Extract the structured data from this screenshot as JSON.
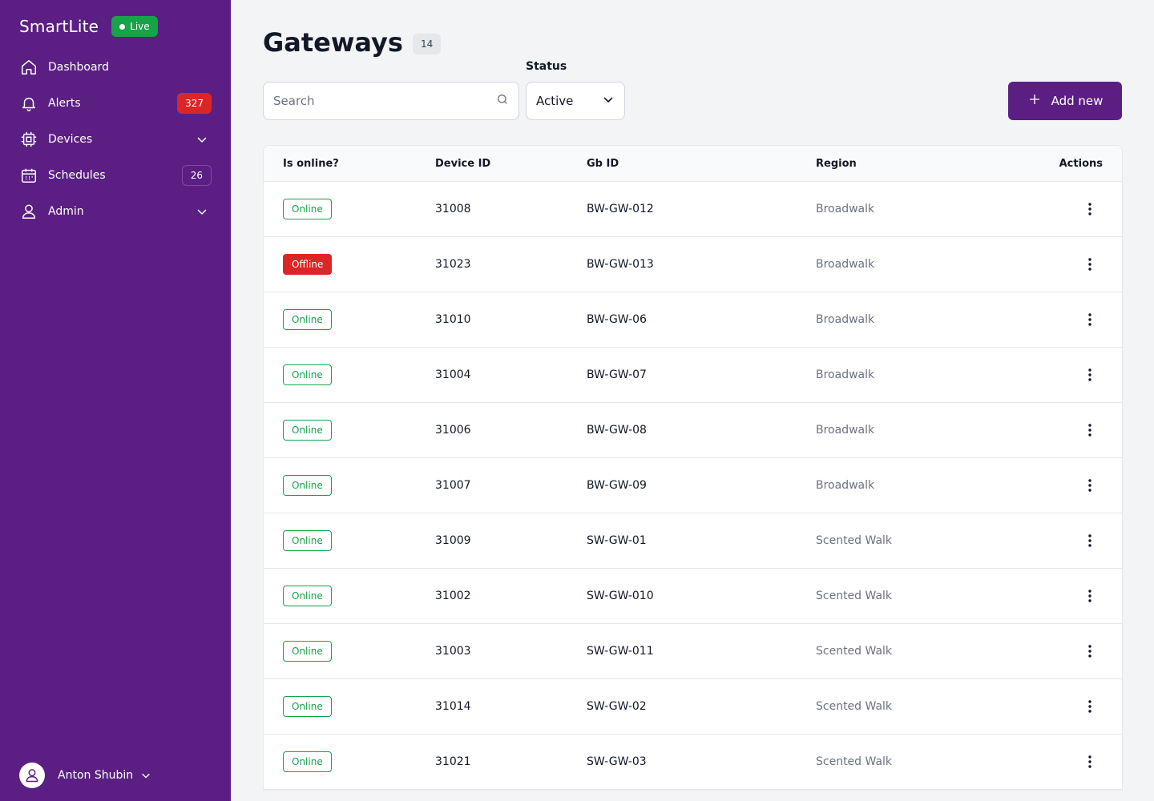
{
  "app": {
    "name": "SmartLite",
    "live_label": "Live"
  },
  "sidebar": {
    "items": [
      {
        "label": "Dashboard",
        "icon": "home-icon"
      },
      {
        "label": "Alerts",
        "icon": "bell-icon",
        "count": "327"
      },
      {
        "label": "Devices",
        "icon": "chip-icon",
        "expandable": true
      },
      {
        "label": "Schedules",
        "icon": "calendar-icon",
        "count": "26"
      },
      {
        "label": "Admin",
        "icon": "user-icon",
        "expandable": true
      }
    ],
    "user": {
      "name": "Anton Shubin"
    }
  },
  "page": {
    "title": "Gateways",
    "count": "14"
  },
  "filters": {
    "search_placeholder": "Search",
    "status_label": "Status",
    "status_value": "Active"
  },
  "actions": {
    "add_label": "Add new"
  },
  "table": {
    "headers": [
      "Is online?",
      "Device ID",
      "Gb ID",
      "Region",
      "Actions"
    ],
    "rows": [
      {
        "status": "Online",
        "device_id": "31008",
        "gb_id": "BW-GW-012",
        "region": "Broadwalk"
      },
      {
        "status": "Offline",
        "device_id": "31023",
        "gb_id": "BW-GW-013",
        "region": "Broadwalk"
      },
      {
        "status": "Online",
        "device_id": "31010",
        "gb_id": "BW-GW-06",
        "region": "Broadwalk"
      },
      {
        "status": "Online",
        "device_id": "31004",
        "gb_id": "BW-GW-07",
        "region": "Broadwalk"
      },
      {
        "status": "Online",
        "device_id": "31006",
        "gb_id": "BW-GW-08",
        "region": "Broadwalk"
      },
      {
        "status": "Online",
        "device_id": "31007",
        "gb_id": "BW-GW-09",
        "region": "Broadwalk"
      },
      {
        "status": "Online",
        "device_id": "31009",
        "gb_id": "SW-GW-01",
        "region": "Scented Walk"
      },
      {
        "status": "Online",
        "device_id": "31002",
        "gb_id": "SW-GW-010",
        "region": "Scented Walk"
      },
      {
        "status": "Online",
        "device_id": "31003",
        "gb_id": "SW-GW-011",
        "region": "Scented Walk"
      },
      {
        "status": "Online",
        "device_id": "31014",
        "gb_id": "SW-GW-02",
        "region": "Scented Walk"
      },
      {
        "status": "Online",
        "device_id": "31021",
        "gb_id": "SW-GW-03",
        "region": "Scented Walk"
      }
    ]
  },
  "colors": {
    "sidebar_bg": "#5b1f83",
    "online": "#16a34a",
    "offline": "#dc2626",
    "alert_badge": "#dc2626",
    "live_badge": "#16a34a"
  }
}
